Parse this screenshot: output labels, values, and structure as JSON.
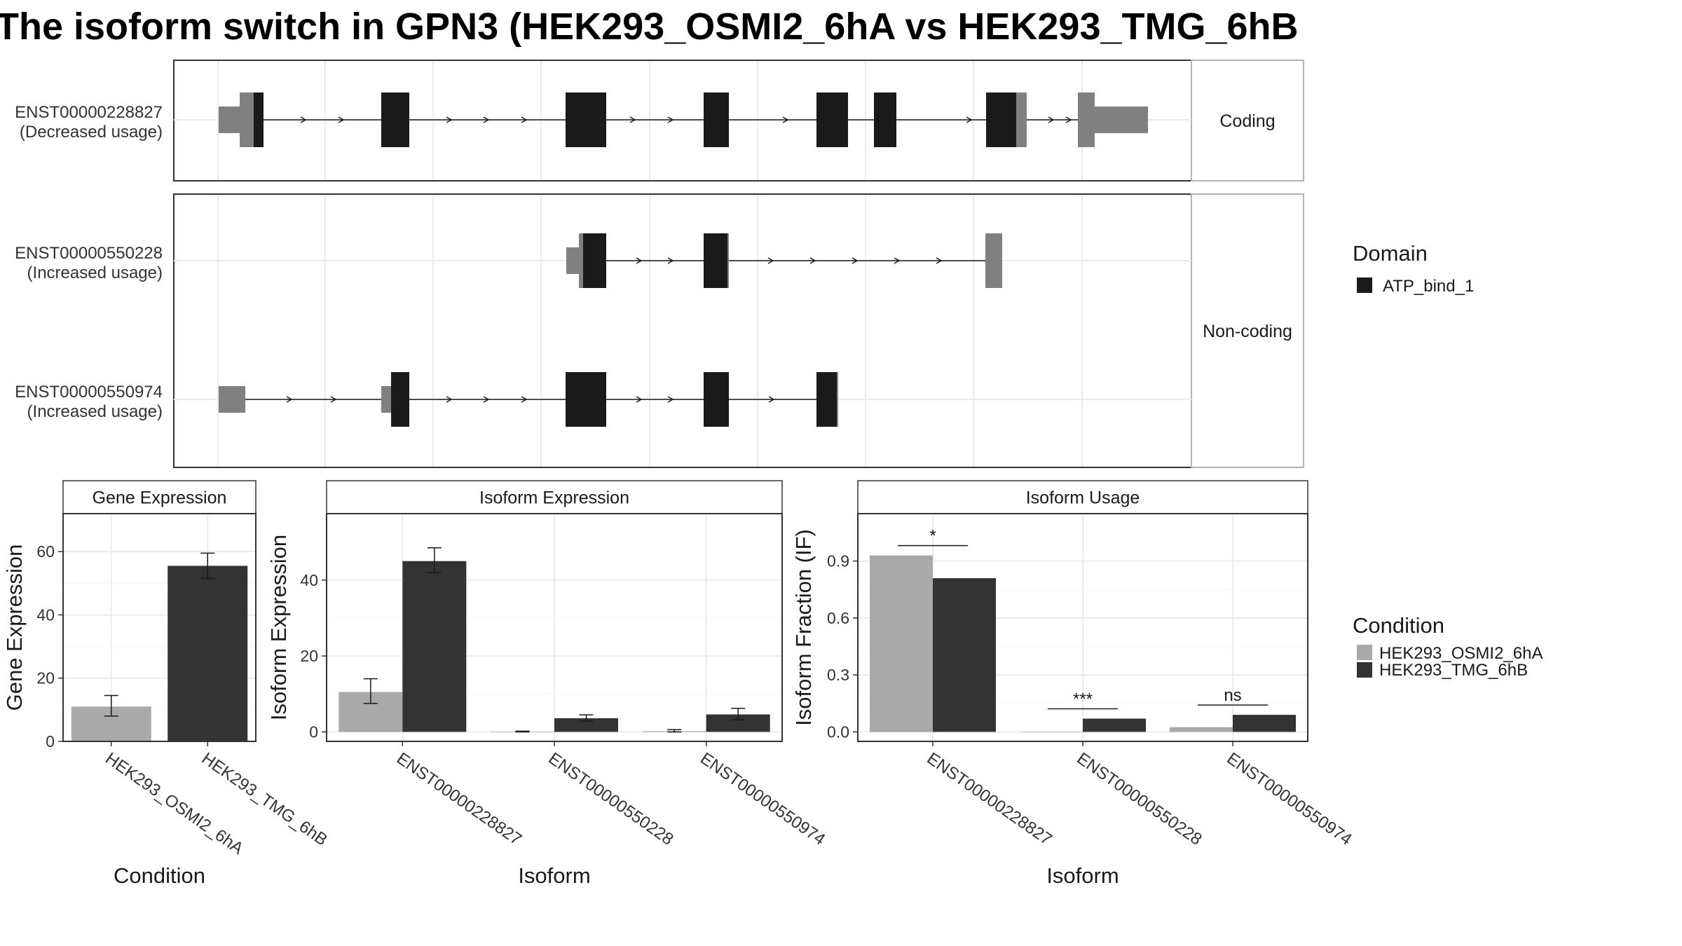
{
  "title": "The isoform switch in GPN3 (HEK293_OSMI2_6hA vs HEK293_TMG_6hB",
  "colors": {
    "domain": "#1a1a1a",
    "exon": "#808080",
    "condA": "#a9a9a9",
    "condB": "#333333",
    "grid": "#ebebeb",
    "border": "#333333",
    "strip_border": "#b3b3b3"
  },
  "structure": {
    "facet_labels": [
      "Coding",
      "Non-coding"
    ],
    "transcripts": [
      {
        "id": "ENST00000228827",
        "usage": "(Decreased usage)",
        "facet": "Coding"
      },
      {
        "id": "ENST00000550228",
        "usage": "(Increased usage)",
        "facet": "Non-coding"
      },
      {
        "id": "ENST00000550974",
        "usage": "(Increased usage)",
        "facet": "Non-coding"
      }
    ]
  },
  "legends": {
    "domain": {
      "title": "Domain",
      "items": [
        "ATP_bind_1"
      ]
    },
    "condition": {
      "title": "Condition",
      "items": [
        "HEK293_OSMI2_6hA",
        "HEK293_TMG_6hB"
      ]
    }
  },
  "chart_data": [
    {
      "type": "bar",
      "title": "Gene Expression",
      "xlabel": "Condition",
      "ylabel": "Gene Expression",
      "categories": [
        "HEK293_OSMI2_6hA",
        "HEK293_TMG_6hB"
      ],
      "values": [
        11,
        55.5
      ],
      "errors": [
        [
          8,
          14.5
        ],
        [
          51.5,
          59.5
        ]
      ],
      "yticks": [
        0,
        20,
        40,
        60
      ],
      "ylim": [
        0,
        72
      ]
    },
    {
      "type": "bar",
      "title": "Isoform Expression",
      "xlabel": "Isoform",
      "ylabel": "Isoform Expression",
      "categories": [
        "ENST00000228827",
        "ENST00000550228",
        "ENST00000550974"
      ],
      "series": [
        {
          "name": "HEK293_OSMI2_6hA",
          "values": [
            10.5,
            0.1,
            0.2
          ],
          "errors": [
            [
              7.5,
              14
            ],
            [
              0,
              0.2
            ],
            [
              0,
              0.6
            ]
          ]
        },
        {
          "name": "HEK293_TMG_6hB",
          "values": [
            45,
            3.6,
            4.6
          ],
          "errors": [
            [
              42,
              48.5
            ],
            [
              2.8,
              4.5
            ],
            [
              3.2,
              6.2
            ]
          ]
        }
      ],
      "yticks": [
        0,
        20,
        40
      ],
      "ylim": [
        -2.5,
        57.5
      ]
    },
    {
      "type": "bar",
      "title": "Isoform Usage",
      "xlabel": "Isoform",
      "ylabel": "Isoform Fraction (IF)",
      "categories": [
        "ENST00000228827",
        "ENST00000550228",
        "ENST00000550974"
      ],
      "series": [
        {
          "name": "HEK293_OSMI2_6hA",
          "values": [
            0.93,
            0.0,
            0.025
          ]
        },
        {
          "name": "HEK293_TMG_6hB",
          "values": [
            0.81,
            0.07,
            0.09
          ]
        }
      ],
      "significance": [
        "*",
        "***",
        "ns"
      ],
      "yticks": [
        0.0,
        0.3,
        0.6,
        0.9
      ],
      "ylim": [
        -0.05,
        1.15
      ]
    }
  ]
}
